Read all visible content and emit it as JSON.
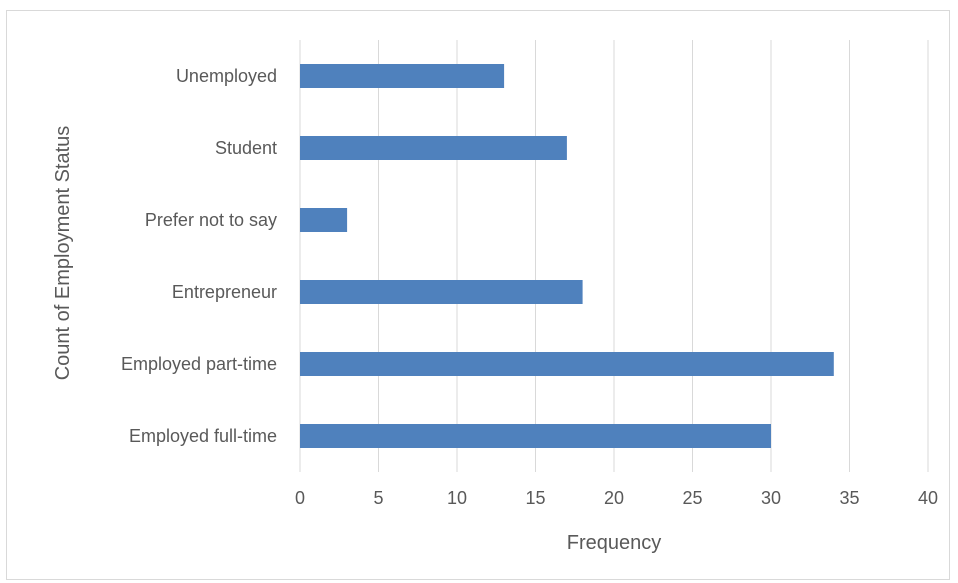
{
  "chart_data": {
    "type": "bar",
    "orientation": "horizontal",
    "categories": [
      "Employed full-time",
      "Employed part-time",
      "Entrepreneur",
      "Prefer not to say",
      "Student",
      "Unemployed"
    ],
    "values": [
      30,
      34,
      18,
      3,
      17,
      13
    ],
    "xlabel": "Frequency",
    "ylabel": "Count of Employment Status",
    "xlim": [
      0,
      40
    ],
    "xticks": [
      "0",
      "5",
      "10",
      "15",
      "20",
      "25",
      "30",
      "35",
      "40"
    ],
    "grid": "vertical",
    "legend": "none",
    "bar_color": "#4f81bd",
    "grid_color": "#d9d9d9"
  }
}
